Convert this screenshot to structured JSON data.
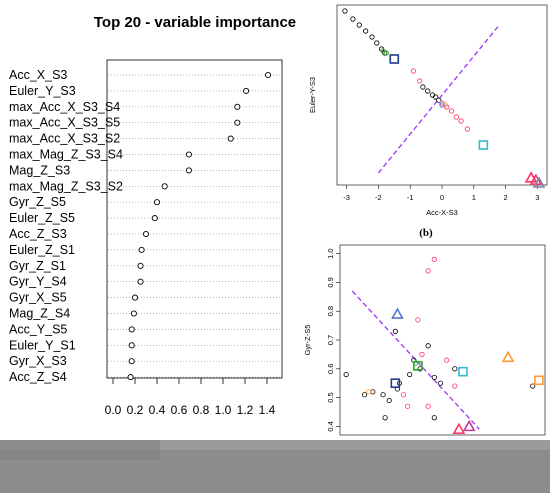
{
  "chart_data": [
    {
      "type": "dotchart",
      "title": "Top 20 - variable importance",
      "categories": [
        "Acc_X_S3",
        "Euler_Y_S3",
        "max_Acc_X_S3_S4",
        "max_Acc_X_S3_S5",
        "max_Acc_X_S3_S2",
        "max_Mag_Z_S3_S4",
        "Mag_Z_S3",
        "max_Mag_Z_S3_S2",
        "Gyr_Z_S5",
        "Euler_Z_S5",
        "Acc_Z_S3",
        "Euler_Z_S1",
        "Gyr_Z_S1",
        "Gyr_Y_S4",
        "Gyr_X_S5",
        "Mag_Z_S4",
        "Acc_Y_S5",
        "Euler_Y_S1",
        "Gyr_X_S3",
        "Acc_Z_S4"
      ],
      "values": [
        1.41,
        1.21,
        1.13,
        1.13,
        1.07,
        0.69,
        0.69,
        0.47,
        0.4,
        0.38,
        0.3,
        0.26,
        0.25,
        0.25,
        0.2,
        0.19,
        0.17,
        0.17,
        0.17,
        0.16
      ],
      "xticks": [
        "0.0",
        "0.2",
        "0.4",
        "0.6",
        "0.8",
        "1.0",
        "1.2",
        "1.4"
      ],
      "xlim": [
        0.0,
        1.45
      ],
      "grid": "dotted horizontal"
    },
    {
      "type": "scatter",
      "panel_label": "(b)",
      "xlabel": "Acc-X-S3",
      "ylabel": "Euler-Y-S3",
      "xticks": [
        "-3",
        "-2",
        "-1",
        "0",
        "1",
        "2",
        "3"
      ],
      "xlim": [
        -3.3,
        3.3
      ],
      "ylim": [
        -2.0,
        2.5
      ],
      "series": [
        {
          "marker": "circle",
          "color": "#000000",
          "points": [
            [
              -3.05,
              2.35
            ],
            [
              -2.8,
              2.15
            ],
            [
              -2.6,
              2.0
            ],
            [
              -2.4,
              1.85
            ],
            [
              -2.2,
              1.7
            ],
            [
              -2.05,
              1.55
            ],
            [
              -1.9,
              1.4
            ],
            [
              -1.8,
              1.3
            ],
            [
              -0.6,
              0.45
            ],
            [
              -0.45,
              0.35
            ],
            [
              -0.3,
              0.25
            ],
            [
              -0.2,
              0.2
            ],
            [
              -0.1,
              0.12
            ]
          ]
        },
        {
          "marker": "circle",
          "color": "#ff3366",
          "points": [
            [
              -0.9,
              0.85
            ],
            [
              -0.7,
              0.6
            ],
            [
              0.0,
              0.05
            ],
            [
              0.15,
              -0.05
            ],
            [
              0.3,
              -0.15
            ],
            [
              0.45,
              -0.3
            ],
            [
              0.6,
              -0.4
            ],
            [
              0.8,
              -0.6
            ]
          ]
        },
        {
          "marker": "circle",
          "color": "#22aa22",
          "points": [
            [
              -1.85,
              1.35
            ],
            [
              -1.75,
              1.3
            ]
          ]
        },
        {
          "marker": "circle",
          "color": "#2266ff",
          "points": [
            [
              0.0,
              0.0
            ]
          ]
        },
        {
          "marker": "square",
          "color": "#1f3b8f",
          "points": [
            [
              -1.5,
              1.15
            ]
          ]
        },
        {
          "marker": "square",
          "color": "#33bbcc",
          "points": [
            [
              1.3,
              -1.0
            ]
          ]
        },
        {
          "marker": "triangle",
          "color": "#ff3366",
          "points": [
            [
              2.8,
              -1.82
            ],
            [
              2.95,
              -1.88
            ]
          ]
        },
        {
          "marker": "triangle",
          "color": "#7788aa",
          "points": [
            [
              3.05,
              -1.95
            ]
          ]
        },
        {
          "marker": "circle",
          "color": "#ff9933",
          "points": [
            [
              0.1,
              0.0
            ]
          ]
        }
      ],
      "line": {
        "style": "dashed",
        "color": "#9933ff",
        "from": [
          -2.0,
          -1.7
        ],
        "to": [
          1.8,
          2.0
        ]
      }
    },
    {
      "type": "scatter",
      "ylabel": "Gyr-Z-S5",
      "yticks": [
        "0.4",
        "0.5",
        "0.6",
        "0.7",
        "0.8",
        "0.9",
        "1.0"
      ],
      "ylim": [
        0.37,
        1.03
      ],
      "xlim": [
        0.0,
        10.0
      ],
      "series": [
        {
          "marker": "circle",
          "color": "#000000",
          "points": [
            [
              0.3,
              0.58
            ],
            [
              1.6,
              0.52
            ],
            [
              2.1,
              0.51
            ],
            [
              2.4,
              0.49
            ],
            [
              2.8,
              0.53
            ],
            [
              2.9,
              0.55
            ],
            [
              3.4,
              0.58
            ],
            [
              3.6,
              0.63
            ],
            [
              3.9,
              0.6
            ],
            [
              4.3,
              0.68
            ],
            [
              4.6,
              0.57
            ],
            [
              4.9,
              0.55
            ],
            [
              5.6,
              0.6
            ],
            [
              1.2,
              0.51
            ],
            [
              2.2,
              0.43
            ],
            [
              4.6,
              0.43
            ],
            [
              9.4,
              0.54
            ],
            [
              2.7,
              0.73
            ]
          ]
        },
        {
          "marker": "circle",
          "color": "#ff3366",
          "points": [
            [
              4.6,
              0.98
            ],
            [
              4.3,
              0.94
            ],
            [
              3.8,
              0.77
            ],
            [
              4.0,
              0.65
            ],
            [
              5.2,
              0.63
            ],
            [
              5.6,
              0.54
            ],
            [
              3.1,
              0.51
            ],
            [
              3.3,
              0.47
            ],
            [
              4.3,
              0.47
            ]
          ]
        },
        {
          "marker": "circle",
          "color": "#ff9933",
          "points": [
            [
              1.4,
              0.52
            ]
          ]
        },
        {
          "marker": "circle",
          "color": "#22aa22",
          "points": [
            [
              3.7,
              0.62
            ]
          ]
        },
        {
          "marker": "triangle",
          "color": "#5577cc",
          "points": [
            [
              2.8,
              0.79
            ]
          ]
        },
        {
          "marker": "triangle",
          "color": "#ff9933",
          "points": [
            [
              8.2,
              0.64
            ]
          ]
        },
        {
          "marker": "triangle",
          "color": "#ff3366",
          "points": [
            [
              5.8,
              0.39
            ]
          ]
        },
        {
          "marker": "triangle",
          "color": "#cc3399",
          "points": [
            [
              6.3,
              0.4
            ]
          ]
        },
        {
          "marker": "square",
          "color": "#33bbcc",
          "points": [
            [
              6.0,
              0.59
            ]
          ]
        },
        {
          "marker": "square",
          "color": "#1f3b8f",
          "points": [
            [
              2.7,
              0.55
            ]
          ]
        },
        {
          "marker": "square",
          "color": "#ff9933",
          "points": [
            [
              9.7,
              0.56
            ]
          ]
        },
        {
          "marker": "square",
          "color": "#22aa22",
          "points": [
            [
              3.8,
              0.61
            ]
          ]
        }
      ],
      "line": {
        "style": "dashed",
        "color": "#9933ff",
        "from": [
          0.6,
          0.87
        ],
        "to": [
          6.8,
          0.39
        ]
      }
    }
  ]
}
